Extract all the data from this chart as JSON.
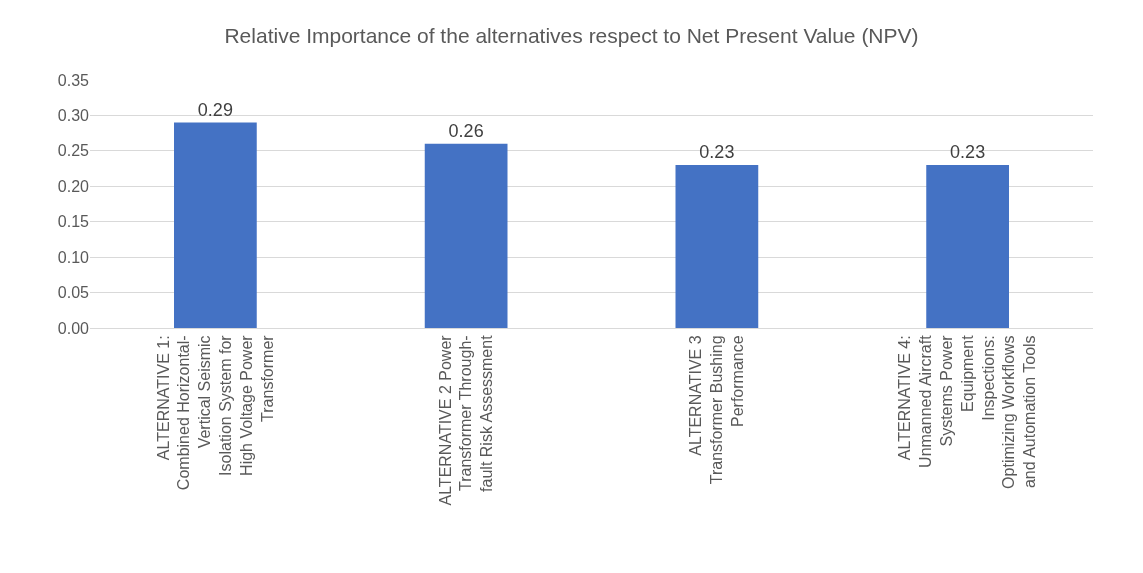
{
  "chart_data": {
    "type": "bar",
    "title": "Relative Importance of the alternatives respect to Net Present Value (NPV)",
    "categories": [
      "ALTERNATIVE 1: Combined Horizontal-Vertical Seismic Isolation System for High Voltage Power Transformer",
      "ALTERNATIVE 2 Power Transformer Through-fault Risk Assessment",
      "ALTERNATIVE 3 Transformer Bushing Performance",
      "ALTERNATIVE 4: Unmanned Aircraft Systems Power Equipment Inspections: Optimizing Workflows and Automation Tools"
    ],
    "values": [
      0.29,
      0.26,
      0.23,
      0.23
    ],
    "color": "#4472c4",
    "data_labels": true,
    "ylim": [
      0,
      0.35
    ],
    "yticks": [
      {
        "value": 0,
        "label": "0.00"
      },
      {
        "value": 0.05,
        "label": "0.05"
      },
      {
        "value": 0.1,
        "label": "0.10"
      },
      {
        "value": 0.15,
        "label": "0.15"
      },
      {
        "value": 0.2,
        "label": "0.20"
      },
      {
        "value": 0.25,
        "label": "0.25"
      },
      {
        "value": 0.3,
        "label": "0.30"
      },
      {
        "value": 0.35,
        "label": "0.35"
      }
    ],
    "grid": "y"
  }
}
